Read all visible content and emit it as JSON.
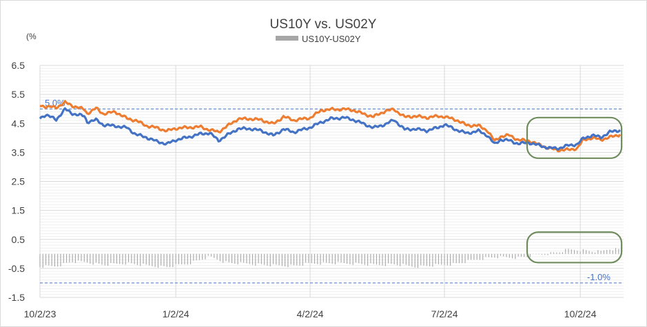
{
  "chart_data": {
    "type": "line",
    "title": "US10Y vs. US02Y",
    "ylabel_unit": "(%",
    "ylim": [
      -1.5,
      6.5
    ],
    "yticks": [
      "6.5",
      "5.5",
      "4.5",
      "3.5",
      "2.5",
      "1.5",
      "0.5",
      "-0.5",
      "-1.5"
    ],
    "ytick_values": [
      6.5,
      5.5,
      4.5,
      3.5,
      2.5,
      1.5,
      0.5,
      -0.5,
      -1.5
    ],
    "grid": true,
    "legend_position": "top-center",
    "legend": [
      {
        "label": "US10Y-US02Y",
        "color": "#a6a6a6"
      }
    ],
    "xticks": [
      {
        "label": "10/2/23",
        "date": "2023-10-02"
      },
      {
        "label": "1/2/24",
        "date": "2024-01-02"
      },
      {
        "label": "4/2/24",
        "date": "2024-04-02"
      },
      {
        "label": "7/2/24",
        "date": "2024-07-02"
      },
      {
        "label": "10/2/24",
        "date": "2024-10-02"
      }
    ],
    "x_start": "2023-10-02",
    "x_end": "2024-10-29",
    "reference_lines": [
      {
        "value": 5.0,
        "label": "5.0%",
        "color": "#4472c4"
      },
      {
        "value": -1.0,
        "label": "-1.0%",
        "color": "#4472c4"
      }
    ],
    "highlight_boxes": [
      {
        "from": "2024-08-27",
        "to": "2024-10-30",
        "ymin": 3.3,
        "ymax": 4.7,
        "color": "#6e8b5c"
      },
      {
        "from": "2024-08-27",
        "to": "2024-10-30",
        "ymin": -0.3,
        "ymax": 0.75,
        "color": "#6e8b5c"
      }
    ],
    "series": [
      {
        "color": "#4472c4",
        "points": [
          [
            "2023-10-02",
            4.68
          ],
          [
            "2023-10-06",
            4.8
          ],
          [
            "2023-10-13",
            4.63
          ],
          [
            "2023-10-19",
            4.99
          ],
          [
            "2023-10-24",
            4.84
          ],
          [
            "2023-11-01",
            4.75
          ],
          [
            "2023-11-03",
            4.55
          ],
          [
            "2023-11-09",
            4.62
          ],
          [
            "2023-11-14",
            4.45
          ],
          [
            "2023-11-22",
            4.41
          ],
          [
            "2023-11-30",
            4.35
          ],
          [
            "2023-12-06",
            4.12
          ],
          [
            "2023-12-13",
            4.02
          ],
          [
            "2023-12-20",
            3.88
          ],
          [
            "2023-12-27",
            3.79
          ],
          [
            "2024-01-02",
            3.93
          ],
          [
            "2024-01-10",
            4.02
          ],
          [
            "2024-01-19",
            4.14
          ],
          [
            "2024-01-25",
            4.17
          ],
          [
            "2024-01-31",
            3.91
          ],
          [
            "2024-02-06",
            4.1
          ],
          [
            "2024-02-13",
            4.31
          ],
          [
            "2024-02-21",
            4.32
          ],
          [
            "2024-02-29",
            4.25
          ],
          [
            "2024-03-08",
            4.08
          ],
          [
            "2024-03-15",
            4.3
          ],
          [
            "2024-03-22",
            4.2
          ],
          [
            "2024-04-02",
            4.36
          ],
          [
            "2024-04-10",
            4.55
          ],
          [
            "2024-04-16",
            4.66
          ],
          [
            "2024-04-25",
            4.7
          ],
          [
            "2024-05-01",
            4.63
          ],
          [
            "2024-05-08",
            4.49
          ],
          [
            "2024-05-15",
            4.35
          ],
          [
            "2024-05-23",
            4.47
          ],
          [
            "2024-05-29",
            4.62
          ],
          [
            "2024-06-05",
            4.29
          ],
          [
            "2024-06-12",
            4.31
          ],
          [
            "2024-06-20",
            4.25
          ],
          [
            "2024-06-28",
            4.36
          ],
          [
            "2024-07-02",
            4.46
          ],
          [
            "2024-07-10",
            4.28
          ],
          [
            "2024-07-17",
            4.16
          ],
          [
            "2024-07-25",
            4.24
          ],
          [
            "2024-07-31",
            4.09
          ],
          [
            "2024-08-05",
            3.78
          ],
          [
            "2024-08-09",
            3.94
          ],
          [
            "2024-08-15",
            3.91
          ],
          [
            "2024-08-21",
            3.8
          ],
          [
            "2024-08-28",
            3.84
          ],
          [
            "2024-09-05",
            3.73
          ],
          [
            "2024-09-11",
            3.65
          ],
          [
            "2024-09-17",
            3.64
          ],
          [
            "2024-09-24",
            3.74
          ],
          [
            "2024-09-30",
            3.78
          ],
          [
            "2024-10-04",
            3.98
          ],
          [
            "2024-10-10",
            4.09
          ],
          [
            "2024-10-16",
            4.02
          ],
          [
            "2024-10-22",
            4.2
          ],
          [
            "2024-10-29",
            4.27
          ]
        ]
      },
      {
        "color": "#ed7d31",
        "points": [
          [
            "2023-10-02",
            5.12
          ],
          [
            "2023-10-06",
            5.08
          ],
          [
            "2023-10-13",
            5.05
          ],
          [
            "2023-10-19",
            5.22
          ],
          [
            "2023-10-24",
            5.11
          ],
          [
            "2023-11-01",
            4.98
          ],
          [
            "2023-11-03",
            4.84
          ],
          [
            "2023-11-09",
            5.02
          ],
          [
            "2023-11-14",
            4.83
          ],
          [
            "2023-11-22",
            4.9
          ],
          [
            "2023-11-30",
            4.67
          ],
          [
            "2023-12-06",
            4.6
          ],
          [
            "2023-12-13",
            4.42
          ],
          [
            "2023-12-20",
            4.35
          ],
          [
            "2023-12-27",
            4.24
          ],
          [
            "2024-01-02",
            4.33
          ],
          [
            "2024-01-10",
            4.36
          ],
          [
            "2024-01-19",
            4.38
          ],
          [
            "2024-01-25",
            4.27
          ],
          [
            "2024-01-31",
            4.21
          ],
          [
            "2024-02-06",
            4.41
          ],
          [
            "2024-02-13",
            4.65
          ],
          [
            "2024-02-21",
            4.66
          ],
          [
            "2024-02-29",
            4.62
          ],
          [
            "2024-03-08",
            4.48
          ],
          [
            "2024-03-15",
            4.73
          ],
          [
            "2024-03-22",
            4.61
          ],
          [
            "2024-04-02",
            4.69
          ],
          [
            "2024-04-10",
            4.96
          ],
          [
            "2024-04-16",
            4.98
          ],
          [
            "2024-04-25",
            4.99
          ],
          [
            "2024-05-01",
            4.96
          ],
          [
            "2024-05-08",
            4.83
          ],
          [
            "2024-05-15",
            4.73
          ],
          [
            "2024-05-23",
            4.93
          ],
          [
            "2024-05-29",
            4.98
          ],
          [
            "2024-06-05",
            4.72
          ],
          [
            "2024-06-12",
            4.75
          ],
          [
            "2024-06-20",
            4.7
          ],
          [
            "2024-06-28",
            4.75
          ],
          [
            "2024-07-02",
            4.73
          ],
          [
            "2024-07-10",
            4.62
          ],
          [
            "2024-07-17",
            4.44
          ],
          [
            "2024-07-25",
            4.42
          ],
          [
            "2024-07-31",
            4.26
          ],
          [
            "2024-08-05",
            3.89
          ],
          [
            "2024-08-09",
            4.05
          ],
          [
            "2024-08-15",
            4.09
          ],
          [
            "2024-08-21",
            3.93
          ],
          [
            "2024-08-28",
            3.9
          ],
          [
            "2024-09-05",
            3.75
          ],
          [
            "2024-09-11",
            3.64
          ],
          [
            "2024-09-17",
            3.58
          ],
          [
            "2024-09-24",
            3.59
          ],
          [
            "2024-09-30",
            3.64
          ],
          [
            "2024-10-04",
            3.93
          ],
          [
            "2024-10-10",
            4.0
          ],
          [
            "2024-10-16",
            3.94
          ],
          [
            "2024-10-22",
            4.02
          ],
          [
            "2024-10-29",
            4.12
          ]
        ]
      },
      {
        "name": "US10Y-US02Y",
        "kind": "bar",
        "color": "#a6a6a6",
        "points": [
          [
            "2023-10-02",
            -0.44
          ],
          [
            "2023-10-13",
            -0.42
          ],
          [
            "2023-10-24",
            -0.27
          ],
          [
            "2023-11-03",
            -0.29
          ],
          [
            "2023-11-14",
            -0.38
          ],
          [
            "2023-11-30",
            -0.32
          ],
          [
            "2023-12-13",
            -0.4
          ],
          [
            "2023-12-27",
            -0.45
          ],
          [
            "2024-01-10",
            -0.34
          ],
          [
            "2024-01-25",
            -0.1
          ],
          [
            "2024-02-06",
            -0.31
          ],
          [
            "2024-02-21",
            -0.34
          ],
          [
            "2024-03-08",
            -0.4
          ],
          [
            "2024-03-22",
            -0.41
          ],
          [
            "2024-04-02",
            -0.33
          ],
          [
            "2024-04-16",
            -0.32
          ],
          [
            "2024-05-01",
            -0.33
          ],
          [
            "2024-05-15",
            -0.38
          ],
          [
            "2024-05-29",
            -0.36
          ],
          [
            "2024-06-12",
            -0.44
          ],
          [
            "2024-06-28",
            -0.39
          ],
          [
            "2024-07-10",
            -0.34
          ],
          [
            "2024-07-25",
            -0.18
          ],
          [
            "2024-08-05",
            -0.11
          ],
          [
            "2024-08-21",
            -0.13
          ],
          [
            "2024-09-05",
            -0.02
          ],
          [
            "2024-09-11",
            0.01
          ],
          [
            "2024-09-17",
            0.06
          ],
          [
            "2024-09-24",
            0.15
          ],
          [
            "2024-09-30",
            0.14
          ],
          [
            "2024-10-10",
            0.09
          ],
          [
            "2024-10-16",
            0.08
          ],
          [
            "2024-10-22",
            0.18
          ],
          [
            "2024-10-29",
            0.15
          ]
        ]
      }
    ]
  }
}
